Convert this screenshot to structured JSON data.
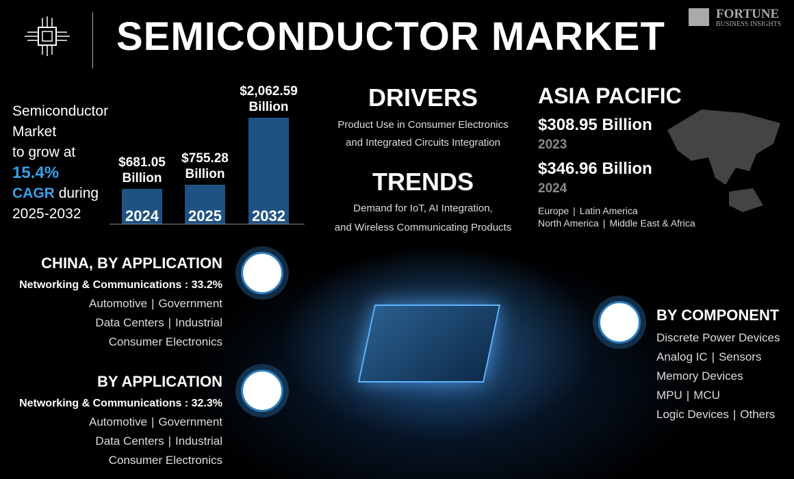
{
  "header": {
    "title": "SEMICONDUCTOR MARKET",
    "logo": {
      "name": "FORTUNE",
      "tagline": "BUSINESS INSIGHTS"
    }
  },
  "intro": {
    "lines": [
      "Semiconductor",
      "Market",
      "to grow at"
    ],
    "rate": "15.4%",
    "rate_unit": "CAGR",
    "during": "during",
    "period": "2025-2032"
  },
  "chart_data": {
    "type": "bar",
    "categories": [
      "2024",
      "2025",
      "2032"
    ],
    "values": [
      681.05,
      755.28,
      2062.59
    ],
    "value_labels": [
      "$681.05 Billion",
      "$755.28 Billion",
      "$2,062.59 Billion"
    ],
    "color": "#1f5283"
  },
  "drivers": {
    "title": "DRIVERS",
    "lines": [
      "Product Use in Consumer Electronics",
      "and Integrated Circuits Integration"
    ]
  },
  "trends": {
    "title": "TRENDS",
    "lines": [
      "Demand for IoT, AI Integration,",
      "and Wireless Communicating Products"
    ]
  },
  "asia_pacific": {
    "title": "ASIA PACIFIC",
    "figures": [
      {
        "amount": "$308.95 Billion",
        "year": "2023"
      },
      {
        "amount": "$346.96 Billion",
        "year": "2024"
      }
    ],
    "regions": [
      [
        "Europe",
        "Latin America"
      ],
      [
        "North America",
        "Middle East & Africa"
      ]
    ]
  },
  "china": {
    "title": "CHINA, BY APPLICATION",
    "highlight": "Networking & Communications : 33.2%",
    "rows": [
      [
        "Automotive",
        "Government"
      ],
      [
        "Data Centers",
        "Industrial"
      ],
      [
        "Consumer Electronics"
      ]
    ]
  },
  "by_application": {
    "title": "BY APPLICATION",
    "highlight": "Networking & Communications : 32.3%",
    "rows": [
      [
        "Automotive",
        "Government"
      ],
      [
        "Data Centers",
        "Industrial"
      ],
      [
        "Consumer Electronics"
      ]
    ]
  },
  "by_component": {
    "title": "BY COMPONENT",
    "rows": [
      [
        "Discrete Power Devices"
      ],
      [
        "Analog IC",
        "Sensors"
      ],
      [
        "Memory Devices"
      ],
      [
        "MPU",
        "MCU"
      ],
      [
        "Logic Devices",
        "Others"
      ]
    ]
  }
}
